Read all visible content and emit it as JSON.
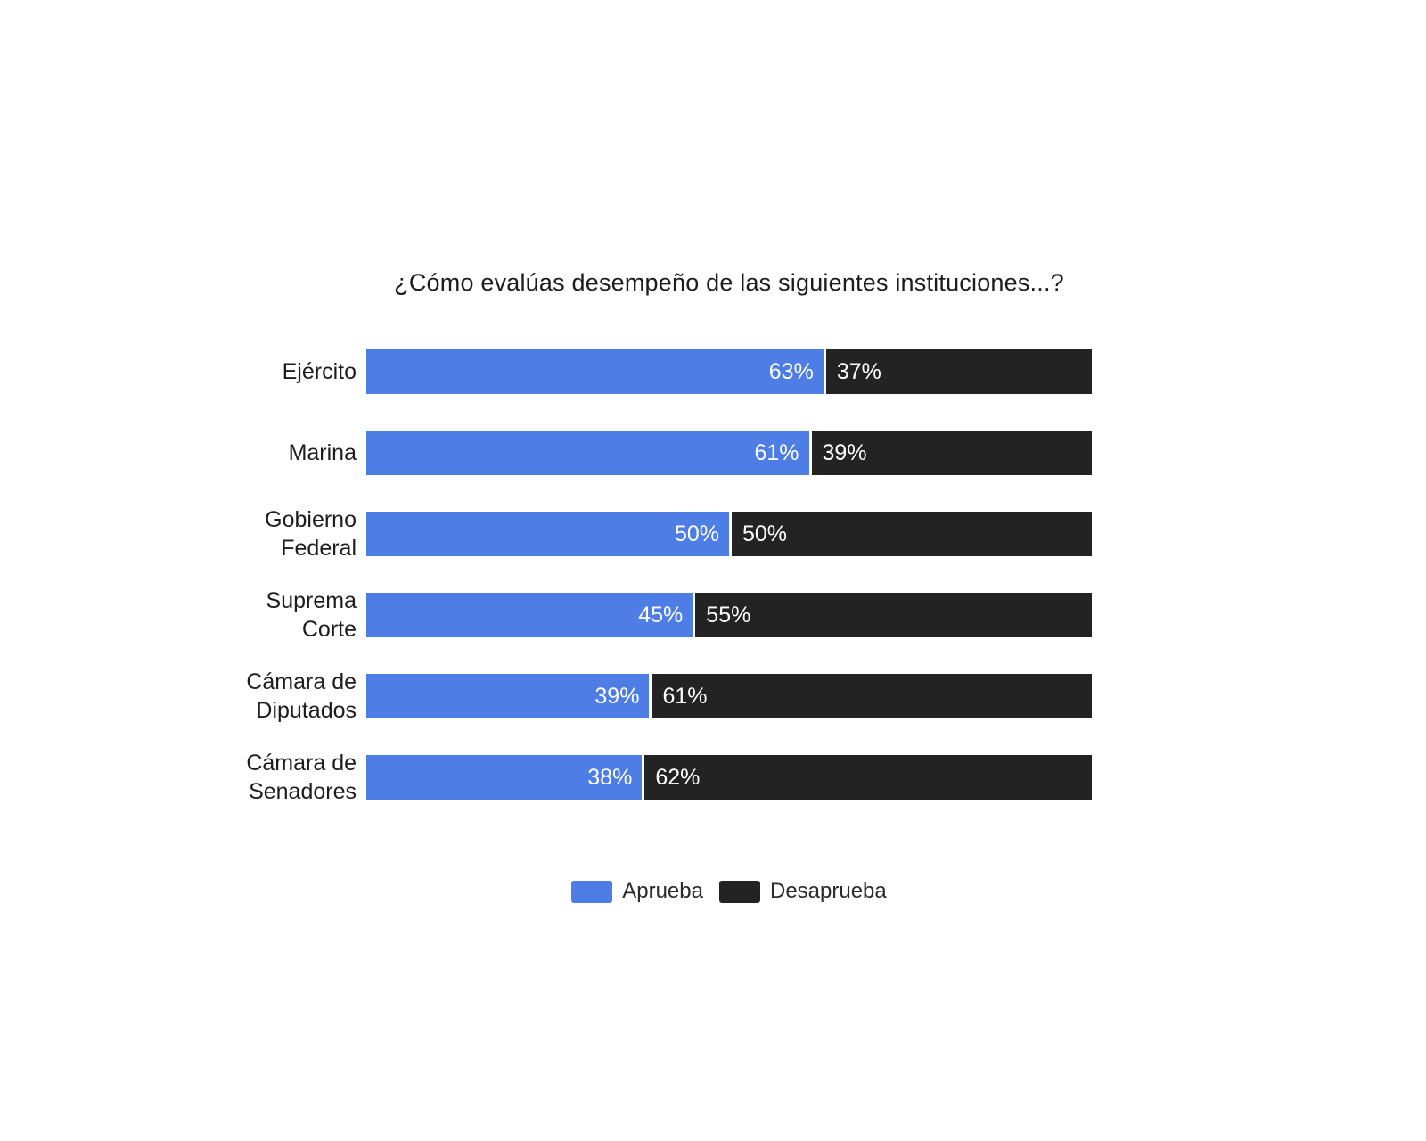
{
  "title": "¿Cómo evalúas desempeño de las siguientes instituciones...?",
  "colors": {
    "approve": "#4e7de6",
    "disapprove": "#232323",
    "background": "#ffffff",
    "value_text": "#ffffff",
    "label_text": "#1d1d1d"
  },
  "chart_data": {
    "type": "bar",
    "orientation": "horizontal",
    "stacked": true,
    "title": "¿Cómo evalúas desempeño de las siguientes instituciones...?",
    "categories": [
      "Ejército",
      "Marina",
      "Gobierno Federal",
      "Suprema Corte",
      "Cámara de Diputados",
      "Cámara de Senadores"
    ],
    "series": [
      {
        "name": "Aprueba",
        "color": "#4e7de6",
        "values": [
          63,
          61,
          50,
          45,
          39,
          38
        ]
      },
      {
        "name": "Desaprueba",
        "color": "#232323",
        "values": [
          37,
          39,
          50,
          55,
          61,
          62
        ]
      }
    ],
    "value_suffix": "%",
    "xlim": [
      0,
      100
    ],
    "grid": false,
    "axes_visible": false,
    "value_labels": "inside",
    "legend_position": "bottom-center"
  }
}
